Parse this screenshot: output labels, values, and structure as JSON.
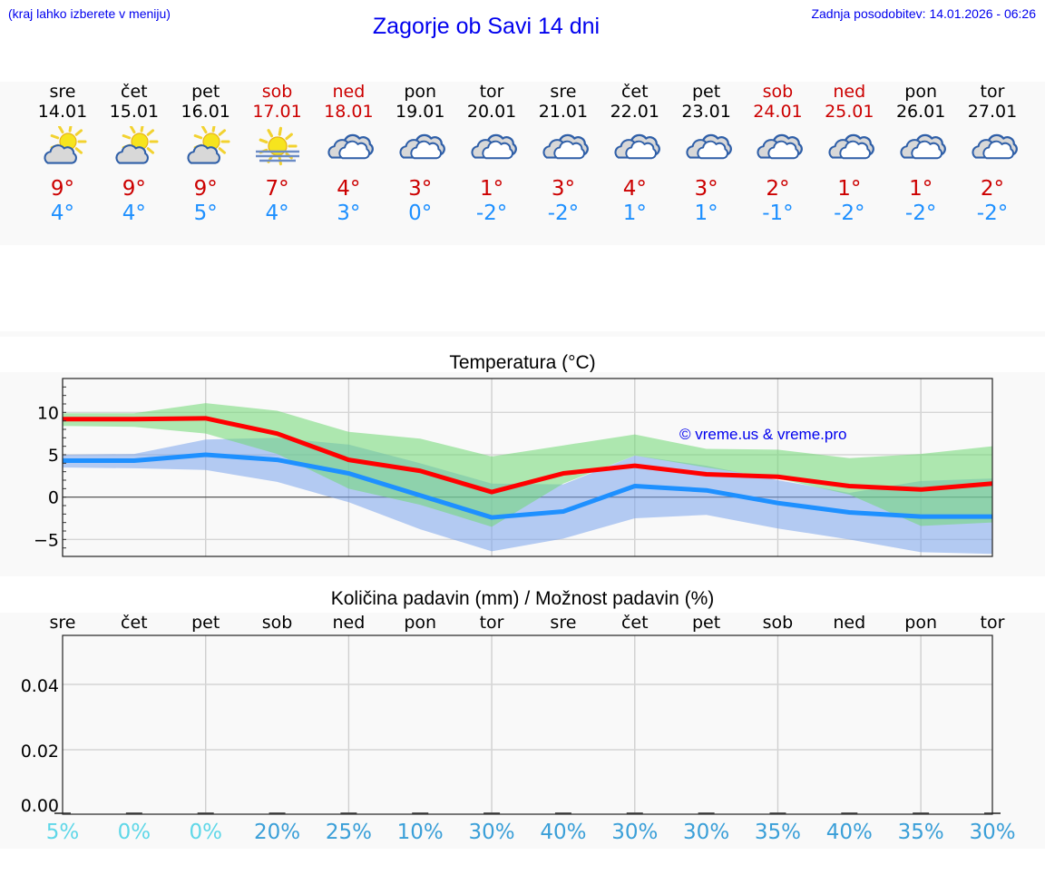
{
  "header": {
    "menu_hint": "(kraj lahko izberete v meniju)",
    "title": "Zagorje ob Savi 14 dni",
    "last_update": "Zadnja posodobitev: 14.01.2026 - 06:26"
  },
  "colors": {
    "link_blue": "#0000ee",
    "max_temp": "#cc0000",
    "min_temp": "#1e90ff",
    "max_line": "#ff0000",
    "min_line": "#1e90ff",
    "max_band": "#abe9ac",
    "min_band": "#adc8f3",
    "overlap_band": "#7ec8a8",
    "pct_low": "#5fd7e8",
    "pct_high": "#3a9fd8"
  },
  "days": [
    {
      "name": "sre",
      "date": "14.01",
      "icon": "partly-cloudy-sun-icon",
      "tmax": "9°",
      "tmin": "4°",
      "weekend": false
    },
    {
      "name": "čet",
      "date": "15.01",
      "icon": "partly-cloudy-sun-icon",
      "tmax": "9°",
      "tmin": "4°",
      "weekend": false
    },
    {
      "name": "pet",
      "date": "16.01",
      "icon": "partly-cloudy-sun-icon",
      "tmax": "9°",
      "tmin": "5°",
      "weekend": false
    },
    {
      "name": "sob",
      "date": "17.01",
      "icon": "fog-sun-icon",
      "tmax": "7°",
      "tmin": "4°",
      "weekend": true
    },
    {
      "name": "ned",
      "date": "18.01",
      "icon": "overcast-icon",
      "tmax": "4°",
      "tmin": "3°",
      "weekend": true
    },
    {
      "name": "pon",
      "date": "19.01",
      "icon": "overcast-icon",
      "tmax": "3°",
      "tmin": "0°",
      "weekend": false
    },
    {
      "name": "tor",
      "date": "20.01",
      "icon": "overcast-icon",
      "tmax": "1°",
      "tmin": "-2°",
      "weekend": false
    },
    {
      "name": "sre",
      "date": "21.01",
      "icon": "overcast-icon",
      "tmax": "3°",
      "tmin": "-2°",
      "weekend": false
    },
    {
      "name": "čet",
      "date": "22.01",
      "icon": "overcast-icon",
      "tmax": "4°",
      "tmin": "1°",
      "weekend": false
    },
    {
      "name": "pet",
      "date": "23.01",
      "icon": "overcast-icon",
      "tmax": "3°",
      "tmin": "1°",
      "weekend": false
    },
    {
      "name": "sob",
      "date": "24.01",
      "icon": "overcast-icon",
      "tmax": "2°",
      "tmin": "-1°",
      "weekend": true
    },
    {
      "name": "ned",
      "date": "25.01",
      "icon": "overcast-icon",
      "tmax": "1°",
      "tmin": "-2°",
      "weekend": true
    },
    {
      "name": "pon",
      "date": "26.01",
      "icon": "overcast-icon",
      "tmax": "1°",
      "tmin": "-2°",
      "weekend": false
    },
    {
      "name": "tor",
      "date": "27.01",
      "icon": "overcast-icon",
      "tmax": "2°",
      "tmin": "-2°",
      "weekend": false
    }
  ],
  "temperature_chart": {
    "title": "Temperatura (°C)",
    "copyright": "© vreme.us & vreme.pro",
    "yticks": [
      "10",
      "5",
      "0",
      "−5"
    ]
  },
  "precip_chart": {
    "title": "Količina padavin (mm) / Možnost padavin (%)",
    "yticks": [
      "0.04",
      "0.02",
      "0.00"
    ]
  },
  "chart_data": [
    {
      "type": "line",
      "title": "Temperatura (°C)",
      "xlabel": "",
      "ylabel": "°C",
      "categories": [
        "14.01",
        "15.01",
        "16.01",
        "17.01",
        "18.01",
        "19.01",
        "20.01",
        "21.01",
        "22.01",
        "23.01",
        "24.01",
        "25.01",
        "26.01",
        "27.01"
      ],
      "ylim": [
        -7,
        14
      ],
      "yticks": [
        -5,
        0,
        5,
        10
      ],
      "grid": true,
      "series": [
        {
          "name": "max",
          "color": "#ff0000",
          "values": [
            9.2,
            9.2,
            9.3,
            7.5,
            4.4,
            3.1,
            0.6,
            2.8,
            3.7,
            2.7,
            2.4,
            1.3,
            0.9,
            1.6
          ]
        },
        {
          "name": "min",
          "color": "#1e90ff",
          "values": [
            4.3,
            4.3,
            5.0,
            4.4,
            2.8,
            0.2,
            -2.4,
            -1.7,
            1.3,
            0.8,
            -0.7,
            -1.8,
            -2.3,
            -2.3
          ]
        },
        {
          "name": "max_range_upper",
          "color": "#abe9ac",
          "values": [
            9.9,
            9.9,
            11.1,
            10.2,
            7.7,
            6.9,
            4.8,
            6.1,
            7.4,
            5.7,
            5.6,
            4.6,
            5.1,
            6.0
          ]
        },
        {
          "name": "max_range_lower",
          "color": "#abe9ac",
          "values": [
            8.4,
            8.3,
            7.5,
            5.1,
            1.0,
            -0.9,
            -3.5,
            1.6,
            4.9,
            3.5,
            2.2,
            0.3,
            -3.4,
            -3.0
          ]
        },
        {
          "name": "min_range_upper",
          "color": "#adc8f3",
          "values": [
            5.0,
            5.1,
            6.8,
            7.0,
            6.2,
            4.0,
            1.6,
            1.5,
            4.9,
            3.7,
            2.0,
            0.5,
            1.9,
            2.2
          ]
        },
        {
          "name": "min_range_lower",
          "color": "#adc8f3",
          "values": [
            3.5,
            3.4,
            3.2,
            1.8,
            -0.6,
            -3.8,
            -6.4,
            -4.9,
            -2.5,
            -2.1,
            -3.7,
            -5.0,
            -6.5,
            -6.7
          ]
        }
      ],
      "annotations": [
        "© vreme.us & vreme.pro"
      ]
    },
    {
      "type": "bar",
      "title": "Količina padavin (mm) / Možnost padavin (%)",
      "xlabel": "",
      "ylabel": "mm",
      "categories": [
        "sre",
        "čet",
        "pet",
        "sob",
        "ned",
        "pon",
        "tor",
        "sre",
        "čet",
        "pet",
        "sob",
        "ned",
        "pon",
        "tor"
      ],
      "ylim": [
        0,
        0.055
      ],
      "yticks": [
        0.0,
        0.02,
        0.04
      ],
      "grid": true,
      "series": [
        {
          "name": "Količina padavin (mm)",
          "values": [
            0,
            0,
            0,
            0,
            0,
            0,
            0,
            0,
            0,
            0,
            0,
            0,
            0,
            0
          ]
        },
        {
          "name": "Možnost padavin (%)",
          "values": [
            5,
            0,
            0,
            20,
            25,
            10,
            30,
            40,
            30,
            30,
            35,
            40,
            35,
            30
          ]
        }
      ],
      "precip_probability_labels": [
        "5%",
        "0%",
        "0%",
        "20%",
        "25%",
        "10%",
        "30%",
        "40%",
        "30%",
        "30%",
        "35%",
        "40%",
        "35%",
        "30%"
      ]
    }
  ]
}
